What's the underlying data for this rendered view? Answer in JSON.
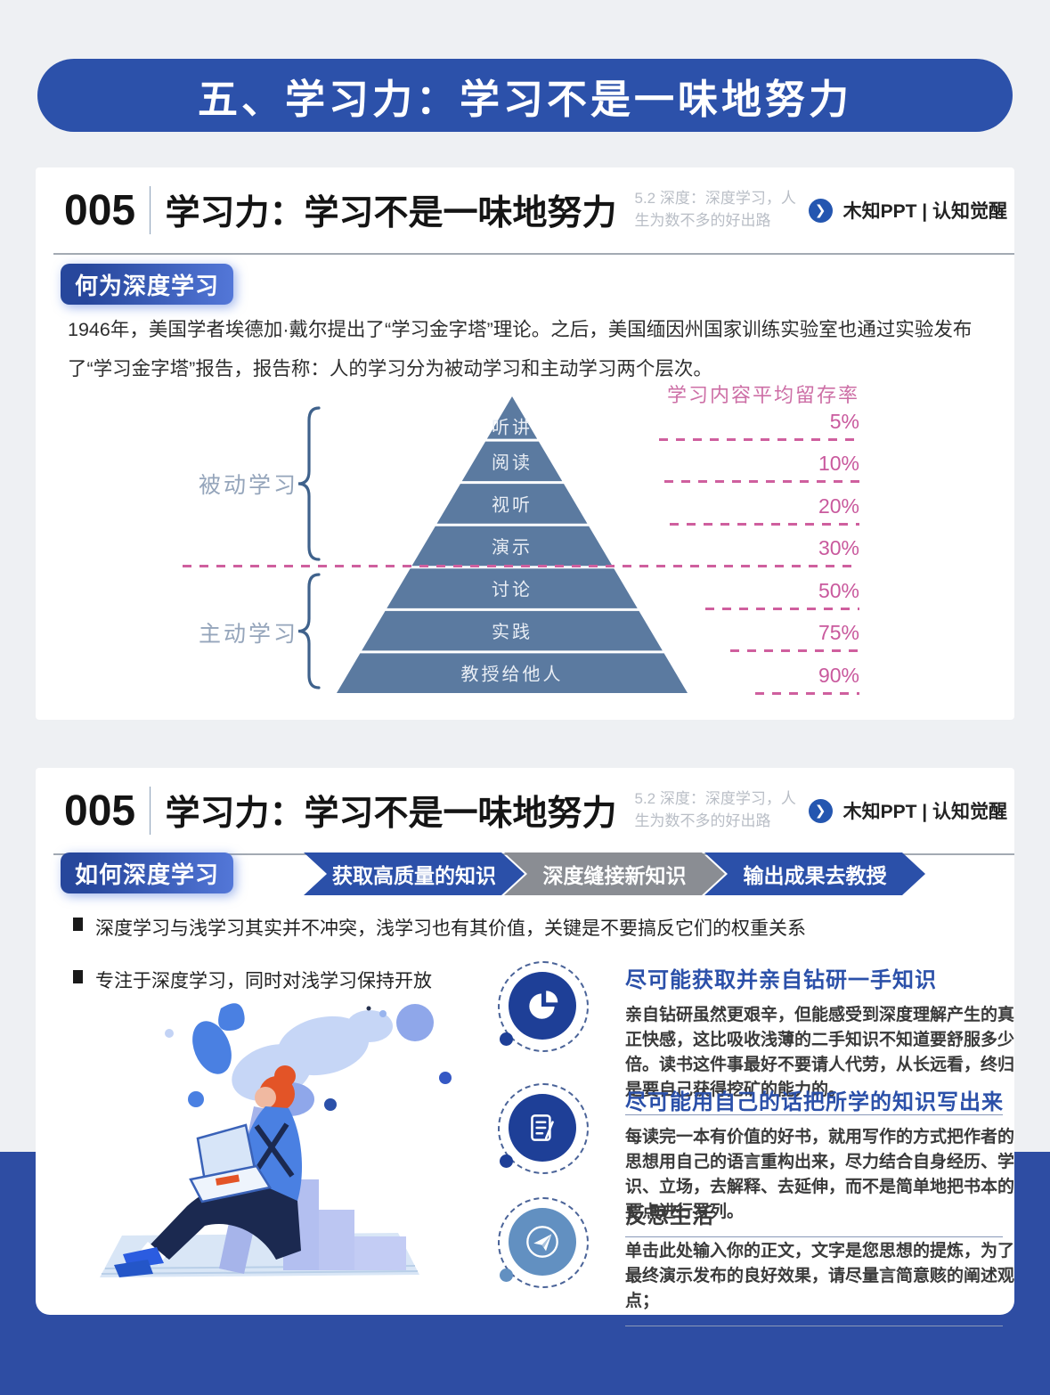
{
  "colors": {
    "accent_blue": "#2b50a9",
    "deep_band_blue": "#2e4da3",
    "pyramid_blue": "#5b7aa0",
    "pink": "#cf5f9e",
    "step_gray": "#8a8d93",
    "icon_navy": "#1e3f97",
    "icon_light_blue": "#6290c1"
  },
  "banner": {
    "title": "五、学习力：学习不是一味地努力"
  },
  "header": {
    "number": "005",
    "title": "学习力：学习不是一味地努力",
    "subtitle": "5.2 深度：深度学习，人生为数不多的好出路",
    "chevron": "❯",
    "brand": "木知PPT | 认知觉醒"
  },
  "what": {
    "badge": "何为深度学习",
    "paragraph": "1946年，美国学者埃德加·戴尔提出了“学习金字塔”理论。之后，美国缅因州国家训练实验室也通过实验发布了“学习金字塔”报告，报告称：人的学习分为被动学习和主动学习两个层次。"
  },
  "chart_data": {
    "type": "pyramid",
    "title": "学习内容平均留存率",
    "levels": [
      {
        "label": "听讲",
        "value": "5%"
      },
      {
        "label": "阅读",
        "value": "10%"
      },
      {
        "label": "视听",
        "value": "20%"
      },
      {
        "label": "演示",
        "value": "30%"
      },
      {
        "label": "讨论",
        "value": "50%"
      },
      {
        "label": "实践",
        "value": "75%"
      },
      {
        "label": "教授给他人",
        "value": "90%"
      }
    ],
    "groups": [
      {
        "label": "被动学习",
        "levels": [
          "听讲",
          "阅读",
          "视听",
          "演示"
        ]
      },
      {
        "label": "主动学习",
        "levels": [
          "讨论",
          "实践",
          "教授给他人"
        ]
      }
    ],
    "legend_position": "right",
    "annotation_style": "pink dashed leader lines"
  },
  "how": {
    "badge": "如何深度学习",
    "steps": [
      {
        "label": "获取高质量的知识",
        "color": "#2b50a9"
      },
      {
        "label": "深度缝接新知识",
        "color": "#8a8d93"
      },
      {
        "label": "输出成果去教授",
        "color": "#2b50a9"
      }
    ],
    "bullets": [
      "深度学习与浅学习其实并不冲突，浅学习也有其价值，关键是不要搞反它们的权重关系",
      "专注于深度学习，同时对浅学习保持开放"
    ],
    "features": [
      {
        "icon": "pie-chart-icon",
        "title": "尽可能获取并亲自钻研一手知识",
        "title_color": "#2b50a9",
        "body": "亲自钻研虽然更艰辛，但能感受到深度理解产生的真正快感，这比吸收浅薄的二手知识不知道要舒服多少倍。读书这件事最好不要请人代劳，从长远看，终归是要自己获得挖矿的能力的。"
      },
      {
        "icon": "note-pencil-icon",
        "title": "尽可能用自己的话把所学的知识写出来",
        "title_color": "#2b50a9",
        "body": "每读完一本有价值的好书，就用写作的方式把作者的思想用自己的语言重构出来，尽力结合自身经历、学识、立场，去解释、去延伸，而不是简单地把书本的要点进行罗列。"
      },
      {
        "icon": "paper-plane-icon",
        "title": "反思生活",
        "title_color": "#3a3a3a",
        "body": "单击此处输入你的正文，文字是您思想的提炼，为了最终演示发布的良好效果，请尽量言简意赅的阐述观点；"
      }
    ]
  }
}
